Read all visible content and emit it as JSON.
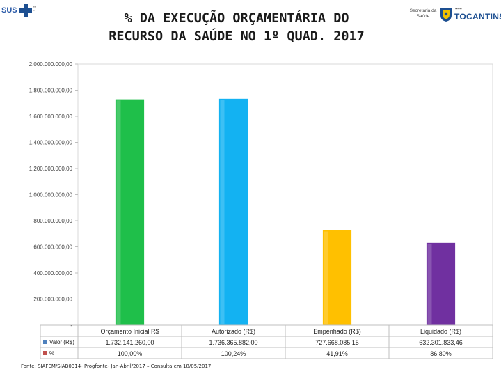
{
  "title_lines": [
    "% DA EXECUÇÃO ORÇAMENTÁRIA DO",
    "RECURSO DA SAÚDE NO 1º QUAD. 2017"
  ],
  "logo_left": {
    "text": "SUS",
    "icon": "medical-cross-icon"
  },
  "logo_right": {
    "secretaria_text": "Secretaria da Saúde",
    "state_text": "TOCANTINS",
    "icon": "state-shield-icon"
  },
  "source_note": "Fonte: SIAFEM/SIAB0314- Progfonte- Jan-Abril/2017 – Consulta em 18/05/2017",
  "chart_data": {
    "type": "bar",
    "title": "% DA EXECUÇÃO ORÇAMENTÁRIA DO RECURSO DA SAÚDE NO 1º QUAD. 2017",
    "categories": [
      "Orçamento Inicial R$",
      "Autorizado (R$)",
      "Empenhado (R$)",
      "Liquidado (R$)"
    ],
    "bar_colors": [
      "#1fbf4a",
      "#13b2f2",
      "#ffc000",
      "#7030a0"
    ],
    "ylim": [
      0,
      2000000000
    ],
    "y_ticks": [
      0,
      200000000,
      400000000,
      600000000,
      800000000,
      1000000000,
      1200000000,
      1400000000,
      1600000000,
      1800000000,
      2000000000
    ],
    "y_tick_labels": [
      "-",
      "200.000.000,00",
      "400.000.000,00",
      "600.000.000,00",
      "800.000.000,00",
      "1.000.000.000,00",
      "1.200.000.000,00",
      "1.400.000.000,00",
      "1.600.000.000,00",
      "1.800.000.000,00",
      "2.000.000.000,00"
    ],
    "series": [
      {
        "name": "Valor (R$)",
        "legend_color": "#4f81bd",
        "values": [
          1732141260.0,
          1736365882.0,
          727668085.15,
          632301833.46
        ],
        "display": [
          "1.732.141.260,00",
          "1.736.365.882,00",
          "727.668.085,15",
          "632.301.833,46"
        ]
      },
      {
        "name": "%",
        "legend_color": "#c0504d",
        "values": [
          100.0,
          100.24,
          41.91,
          86.8
        ],
        "display": [
          "100,00%",
          "100,24%",
          "41,91%",
          "86,80%"
        ]
      }
    ]
  }
}
